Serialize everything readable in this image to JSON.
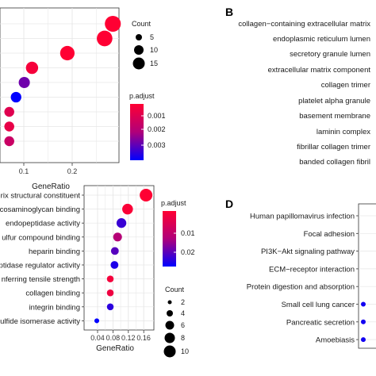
{
  "panels": {
    "B": "B",
    "D": "D"
  },
  "chart_data": [
    {
      "type": "scatter",
      "panel": "A (cropped)",
      "xlabel": "GeneRatio",
      "ylabel": "",
      "xlim": [
        0.0,
        0.3
      ],
      "x_ticks": [
        "0.1",
        "0.2"
      ],
      "points": [
        {
          "x": 0.284,
          "count": 18,
          "padj": 0.0001
        },
        {
          "x": 0.267,
          "count": 17,
          "padj": 0.0001
        },
        {
          "x": 0.19,
          "count": 14,
          "padj": 0.0001
        },
        {
          "x": 0.117,
          "count": 9,
          "padj": 0.0003
        },
        {
          "x": 0.101,
          "count": 7,
          "padj": 0.0025
        },
        {
          "x": 0.084,
          "count": 6,
          "padj": 0.0036
        },
        {
          "x": 0.07,
          "count": 5,
          "padj": 0.0008
        },
        {
          "x": 0.07,
          "count": 5,
          "padj": 0.0006
        },
        {
          "x": 0.07,
          "count": 5,
          "padj": 0.0013
        }
      ],
      "size_legend": {
        "title": "Count",
        "values": [
          "5",
          "10",
          "15"
        ]
      },
      "color_legend": {
        "title": "p.adjust",
        "ticks": [
          "0.001",
          "0.002",
          "0.003"
        ],
        "high": "#ee0000",
        "low": "#0000ee"
      }
    },
    {
      "type": "scatter",
      "panel": "B (cropped)",
      "categories": [
        "collagen−containing extracellular matrix",
        "endoplasmic reticulum lumen",
        "secretory granule lumen",
        "extracellular matrix component",
        "collagen trimer",
        "platelet alpha granule",
        "basement membrane",
        "laminin complex",
        "fibrillar collagen trimer",
        "banded collagen fibril"
      ]
    },
    {
      "type": "scatter",
      "panel": "C",
      "xlabel": "GeneRatio",
      "xlim": [
        0.03,
        0.17
      ],
      "x_ticks": [
        "0.04",
        "0.08",
        "0.12",
        "0.16"
      ],
      "categories": [
        "rix structural constituent",
        "cosaminoglycan binding",
        "endopeptidase activity",
        "ulfur compound binding",
        "heparin binding",
        "ptidase regulator activity",
        "nferring tensile strength",
        "collagen binding",
        "integrin binding",
        "ulfide isomerase activity"
      ],
      "points": [
        {
          "x": 0.166,
          "count": 10,
          "padj": 0.0005
        },
        {
          "x": 0.118,
          "count": 8,
          "padj": 0.0012
        },
        {
          "x": 0.102,
          "count": 7,
          "padj": 0.021
        },
        {
          "x": 0.092,
          "count": 6,
          "padj": 0.012
        },
        {
          "x": 0.085,
          "count": 5,
          "padj": 0.019
        },
        {
          "x": 0.084,
          "count": 5,
          "padj": 0.023
        },
        {
          "x": 0.073,
          "count": 4,
          "padj": 0.002
        },
        {
          "x": 0.073,
          "count": 4,
          "padj": 0.003
        },
        {
          "x": 0.073,
          "count": 4,
          "padj": 0.022
        },
        {
          "x": 0.038,
          "count": 2,
          "padj": 0.025
        }
      ],
      "size_legend": {
        "title": "Count",
        "values": [
          "2",
          "4",
          "6",
          "8",
          "10"
        ]
      },
      "color_legend": {
        "title": "p.adjust",
        "ticks": [
          "0.01",
          "0.02"
        ],
        "high": "#ee0000",
        "low": "#0000ee"
      }
    },
    {
      "type": "scatter",
      "panel": "D (cropped)",
      "categories": [
        "Human papillomavirus infection",
        "Focal adhesion",
        "PI3K−Akt signaling pathway",
        "ECM−receptor interaction",
        "Protein digestion and absorption",
        "Small cell lung cancer",
        "Pancreatic secretion",
        "Amoebiasis"
      ],
      "points": [
        {
          "category": "Small cell lung cancer",
          "padj": 0.02
        },
        {
          "category": "Pancreatic secretion",
          "padj": 0.025
        },
        {
          "category": "Amoebiasis",
          "padj": 0.025
        }
      ]
    }
  ]
}
